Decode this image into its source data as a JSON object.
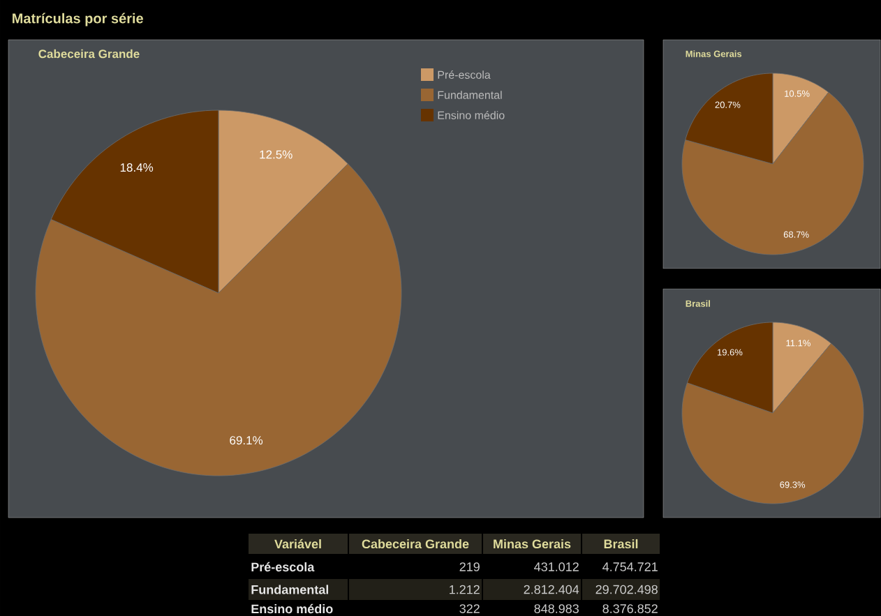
{
  "chart_data": [
    {
      "type": "pie",
      "title": "Matrículas por série",
      "subtitle": "Cabeceira Grande",
      "categories": [
        "Pré-escola",
        "Fundamental",
        "Ensino médio"
      ],
      "values": [
        12.5,
        69.1,
        18.4
      ],
      "value_labels": [
        "12.5%",
        "69.1%",
        "18.4%"
      ],
      "colors": [
        "#cc9966",
        "#996633",
        "#663300"
      ],
      "legend": "top right"
    },
    {
      "type": "pie",
      "subtitle": "Minas Gerais",
      "categories": [
        null,
        null,
        null
      ],
      "values": [
        10.5,
        68.7,
        20.7
      ],
      "value_labels": [
        "10.5%",
        "68.7%",
        "20.7%"
      ],
      "colors": [
        "#cc9966",
        "#996633",
        "#663300"
      ]
    },
    {
      "type": "pie",
      "subtitle": "Brasil",
      "categories": [
        null,
        null,
        null
      ],
      "values": [
        11.1,
        69.3,
        19.6
      ],
      "value_labels": [
        "11.1%",
        "69.3%",
        "19.6%"
      ],
      "colors": [
        "#cc9966",
        "#996633",
        "#663300"
      ]
    },
    {
      "type": "other",
      "annotations": [
        "Variável",
        "Cabeceira Grande",
        "Minas Gerais",
        "Brasil",
        "Pré-escola",
        "219",
        "431.012",
        "4.754.721",
        "Fundamental",
        "1.212",
        "2.812.404",
        "29.702.498",
        "Ensino médio",
        "322",
        "848.983",
        "8.376.852"
      ]
    }
  ]
}
